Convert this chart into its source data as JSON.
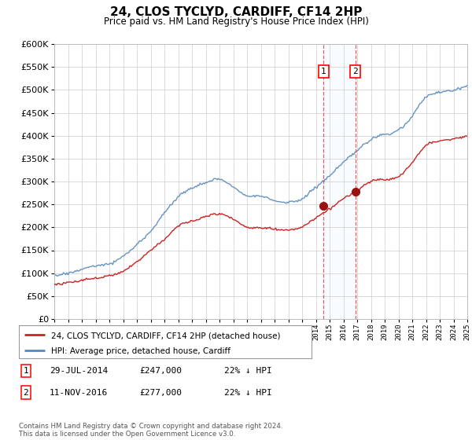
{
  "title": "24, CLOS TYCLYD, CARDIFF, CF14 2HP",
  "subtitle": "Price paid vs. HM Land Registry's House Price Index (HPI)",
  "legend_line1": "24, CLOS TYCLYD, CARDIFF, CF14 2HP (detached house)",
  "legend_line2": "HPI: Average price, detached house, Cardiff",
  "footnote": "Contains HM Land Registry data © Crown copyright and database right 2024.\nThis data is licensed under the Open Government Licence v3.0.",
  "sale1_label": "1",
  "sale1_date": "29-JUL-2014",
  "sale1_price": "£247,000",
  "sale1_pct": "22% ↓ HPI",
  "sale2_label": "2",
  "sale2_date": "11-NOV-2016",
  "sale2_price": "£277,000",
  "sale2_pct": "22% ↓ HPI",
  "hpi_color": "#5588bb",
  "price_color": "#cc2222",
  "background_color": "#ffffff",
  "grid_color": "#cccccc",
  "ylim": [
    0,
    600000
  ],
  "yticks": [
    0,
    50000,
    100000,
    150000,
    200000,
    250000,
    300000,
    350000,
    400000,
    450000,
    500000,
    550000,
    600000
  ],
  "year_start": 1995,
  "year_end": 2025,
  "sale1_year": 2014.57,
  "sale2_year": 2016.87,
  "sale1_price_val": 247000,
  "sale2_price_val": 277000,
  "highlight_color": "#ddeeff"
}
